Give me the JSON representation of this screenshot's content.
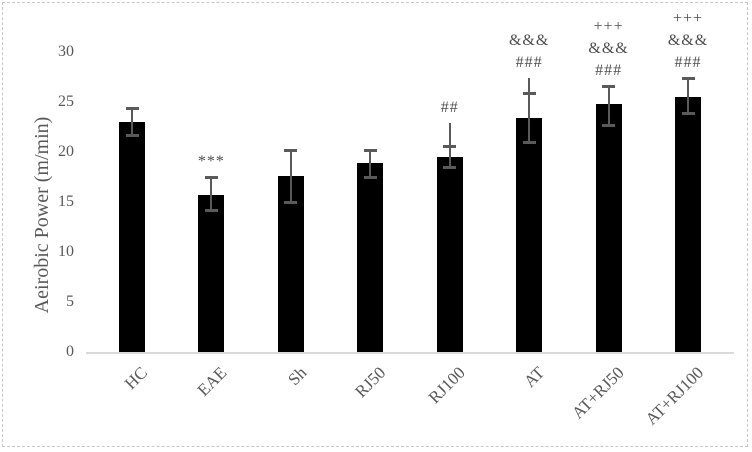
{
  "figure": {
    "background": "#ffffff",
    "border_color": "#c7c7c7"
  },
  "chart_data": {
    "type": "bar",
    "title": "",
    "xlabel": "",
    "ylabel": "Aeirobic Power (m/min)",
    "ylim": [
      0,
      30
    ],
    "yticks": [
      0,
      5,
      10,
      15,
      20,
      25,
      30
    ],
    "grid": false,
    "legend": false,
    "bar_color": "#000000",
    "error_bar_color": "#5a5a5a",
    "text_color": "#595959",
    "axis_line_color": "#d9d9d9",
    "categories": [
      "HC",
      "EAE",
      "Sh",
      "RJ50",
      "RJ100",
      "AT",
      "AT+RJ50",
      "AT+RJ100"
    ],
    "values": [
      23.0,
      15.7,
      17.6,
      18.9,
      19.5,
      23.4,
      24.8,
      25.5
    ],
    "error_plus": [
      1.4,
      1.8,
      2.6,
      1.3,
      1.1,
      2.5,
      1.8,
      1.9
    ],
    "error_minus": [
      1.3,
      1.5,
      2.6,
      1.4,
      1.0,
      2.4,
      2.1,
      1.6
    ],
    "error_line_top": [
      null,
      null,
      null,
      null,
      22.9,
      27.4,
      null,
      null
    ],
    "significance_annotations": [
      [],
      [
        "***"
      ],
      [],
      [],
      [
        "##"
      ],
      [
        "&&&",
        "###"
      ],
      [
        "+++",
        "&&&",
        "###"
      ],
      [
        "+++",
        "&&&",
        "###"
      ]
    ]
  }
}
